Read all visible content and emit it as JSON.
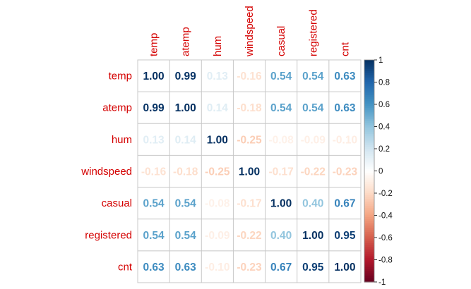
{
  "chart_data": {
    "type": "heatmap",
    "variables": [
      "temp",
      "atemp",
      "hum",
      "windspeed",
      "casual",
      "registered",
      "cnt"
    ],
    "matrix": [
      [
        1.0,
        0.99,
        0.13,
        -0.16,
        0.54,
        0.54,
        0.63
      ],
      [
        0.99,
        1.0,
        0.14,
        -0.18,
        0.54,
        0.54,
        0.63
      ],
      [
        0.13,
        0.14,
        1.0,
        -0.25,
        -0.08,
        -0.09,
        -0.1
      ],
      [
        -0.16,
        -0.18,
        -0.25,
        1.0,
        -0.17,
        -0.22,
        -0.23
      ],
      [
        0.54,
        0.54,
        -0.08,
        -0.17,
        1.0,
        0.4,
        0.67
      ],
      [
        0.54,
        0.54,
        -0.09,
        -0.22,
        0.4,
        1.0,
        0.95
      ],
      [
        0.63,
        0.63,
        -0.1,
        -0.23,
        0.67,
        0.95,
        1.0
      ]
    ],
    "labels": [
      [
        "1.00",
        "0.99",
        "0.13",
        "-0.16",
        "0.54",
        "0.54",
        "0.63"
      ],
      [
        "0.99",
        "1.00",
        "0.14",
        "-0.18",
        "0.54",
        "0.54",
        "0.63"
      ],
      [
        "0.13",
        "0.14",
        "1.00",
        "-0.25",
        "-0.08",
        "-0.09",
        "-0.10"
      ],
      [
        "-0.16",
        "-0.18",
        "-0.25",
        "1.00",
        "-0.17",
        "-0.22",
        "-0.23"
      ],
      [
        "0.54",
        "0.54",
        "-0.08",
        "-0.17",
        "1.00",
        "0.40",
        "0.67"
      ],
      [
        "0.54",
        "0.54",
        "-0.09",
        "-0.22",
        "0.40",
        "1.00",
        "0.95"
      ],
      [
        "0.63",
        "0.63",
        "-0.10",
        "-0.23",
        "0.67",
        "0.95",
        "1.00"
      ]
    ],
    "colorbar": {
      "range": [
        -1,
        1
      ],
      "ticks": [
        "1",
        "0.8",
        "0.6",
        "0.4",
        "0.2",
        "0",
        "-0.2",
        "-0.4",
        "-0.6",
        "-0.8",
        "-1"
      ],
      "palette": [
        "#67001F",
        "#B2182B",
        "#D6604D",
        "#F4A582",
        "#FDDBC7",
        "#FFFFFF",
        "#D1E5F0",
        "#92C5DE",
        "#4393C3",
        "#2166AC",
        "#053061"
      ]
    },
    "label_color": "#D40000",
    "grid": true
  }
}
